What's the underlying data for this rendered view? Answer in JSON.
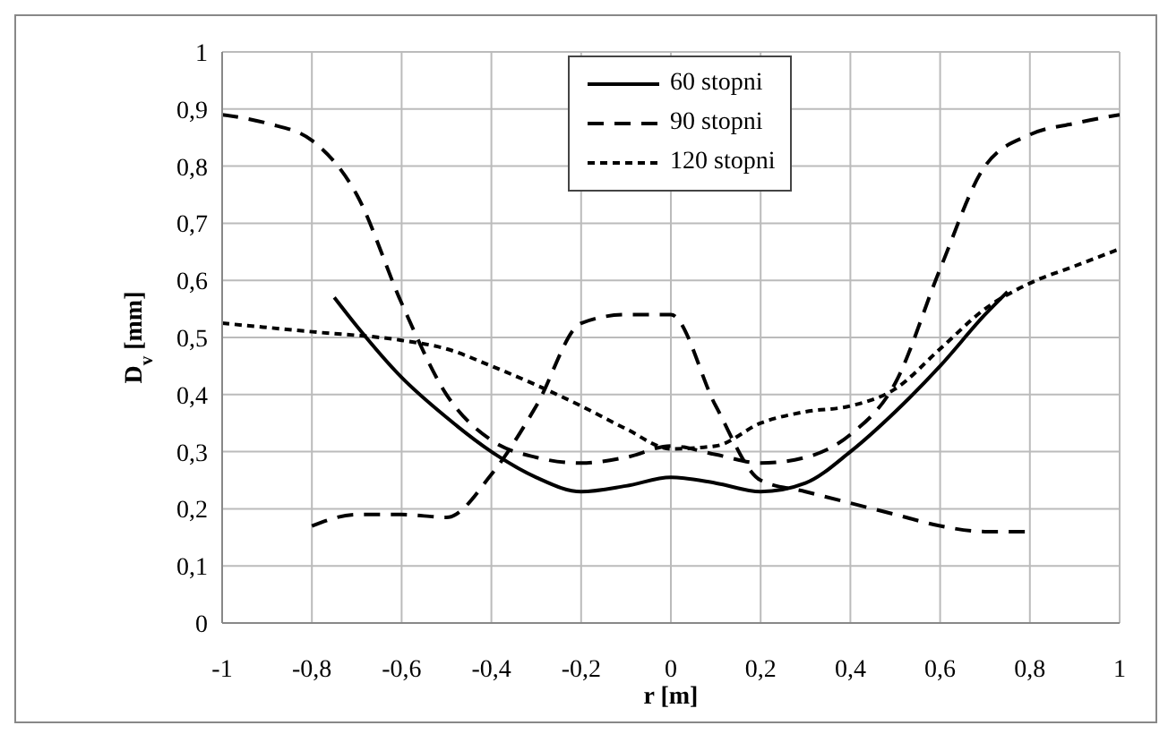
{
  "chart_data": {
    "type": "line",
    "xlabel": "r [m]",
    "ylabel": "D$_{v}$ [mm]",
    "xlim": [
      -1,
      1
    ],
    "ylim": [
      0,
      1
    ],
    "xticks": [
      -1,
      {
        "value": -0.8,
        "label": "-0,8"
      },
      {
        "value": -0.6,
        "label": "-0,6"
      },
      {
        "value": -0.4,
        "label": "-0,4"
      },
      {
        "value": -0.2,
        "label": "-0,2"
      },
      0,
      {
        "value": 0.2,
        "label": "0,2"
      },
      {
        "value": 0.4,
        "label": "0,4"
      },
      {
        "value": 0.6,
        "label": "0,6"
      },
      {
        "value": 0.8,
        "label": "0,8"
      },
      1
    ],
    "yticks": [
      0,
      {
        "value": 0.1,
        "label": "0,1"
      },
      {
        "value": 0.2,
        "label": "0,2"
      },
      {
        "value": 0.3,
        "label": "0,3"
      },
      {
        "value": 0.4,
        "label": "0,4"
      },
      {
        "value": 0.5,
        "label": "0,5"
      },
      {
        "value": 0.6,
        "label": "0,6"
      },
      {
        "value": 0.7,
        "label": "0,7"
      },
      {
        "value": 0.8,
        "label": "0,8"
      },
      {
        "value": 0.9,
        "label": "0,9"
      },
      1
    ],
    "grid": true,
    "legend": "top",
    "marker": "none",
    "series": [
      {
        "name": "60 stopni",
        "color": "#000000",
        "line_style": "solid",
        "x": [
          -0.75,
          -0.7,
          -0.6,
          -0.5,
          -0.4,
          -0.3,
          -0.2,
          -0.1,
          0,
          0.1,
          0.2,
          0.3,
          0.4,
          0.5,
          0.6,
          0.7,
          0.75
        ],
        "values": [
          0.57,
          0.52,
          0.43,
          0.36,
          0.3,
          0.255,
          0.23,
          0.24,
          0.255,
          0.245,
          0.23,
          0.245,
          0.3,
          0.37,
          0.45,
          0.54,
          0.58
        ]
      },
      {
        "name": "90 stopni",
        "color": "#000000",
        "line_style": "dashed",
        "x": [
          -1,
          -0.9,
          -0.8,
          -0.7,
          -0.6,
          -0.5,
          -0.4,
          -0.3,
          -0.2,
          -0.1,
          0,
          0.1,
          0.2,
          0.3,
          0.4,
          0.5,
          0.6,
          0.7,
          0.8,
          0.9,
          1
        ],
        "values": [
          0.89,
          0.875,
          0.845,
          0.75,
          0.56,
          0.4,
          0.32,
          0.29,
          0.28,
          0.29,
          0.31,
          0.295,
          0.28,
          0.29,
          0.33,
          0.42,
          0.62,
          0.8,
          0.855,
          0.875,
          0.89
        ]
      },
      {
        "name": "120 stopni",
        "color": "#000000",
        "line_style": "dotted",
        "x": [
          -1,
          -0.8,
          -0.6,
          -0.5,
          -0.4,
          -0.2,
          -0.1,
          0,
          0.1,
          0.2,
          0.3,
          0.4,
          0.5,
          0.6,
          0.7,
          0.8,
          0.9,
          1
        ],
        "values": [
          0.525,
          0.51,
          0.495,
          0.48,
          0.45,
          0.38,
          0.34,
          0.305,
          0.31,
          0.35,
          0.37,
          0.38,
          0.41,
          0.48,
          0.55,
          0.595,
          0.625,
          0.655
        ]
      },
      {
        "color": "#000000",
        "line_style": "dashed",
        "x": [
          -0.8,
          -0.7,
          -0.6,
          -0.5,
          -0.4,
          -0.3,
          -0.2,
          -0.1,
          0,
          0.1,
          0.2,
          0.3,
          0.4,
          0.5,
          0.6,
          0.7,
          0.8
        ],
        "values": [
          0.17,
          0.19,
          0.19,
          0.185,
          0.26,
          0.38,
          0.525,
          0.54,
          0.54,
          0.38,
          0.25,
          0.23,
          0.21,
          0.19,
          0.17,
          0.16,
          0.16
        ]
      }
    ]
  }
}
